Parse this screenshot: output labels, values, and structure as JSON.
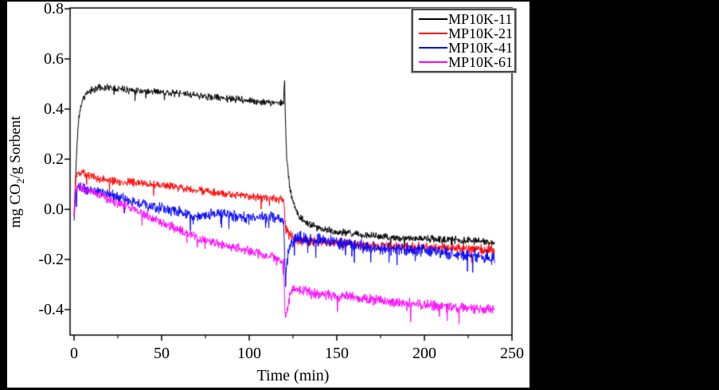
{
  "figure": {
    "background": "#000000",
    "panel_background": "#ffffff",
    "frame_color": "#000000"
  },
  "chart_data": {
    "type": "line",
    "title": "",
    "xlabel": "Time (min)",
    "ylabel": {
      "prefix": "mg CO",
      "sub": "2",
      "suffix": "/g Sorbent"
    },
    "xlim": [
      0,
      250
    ],
    "ylim": [
      -0.5,
      0.8
    ],
    "grid": false,
    "legend_position": "top-right",
    "x_major_ticks": [
      {
        "label": "0",
        "value": 0
      },
      {
        "label": "50",
        "value": 50
      },
      {
        "label": "100",
        "value": 100
      },
      {
        "label": "150",
        "value": 150
      },
      {
        "label": "200",
        "value": 200
      },
      {
        "label": "250",
        "value": 250
      }
    ],
    "x_minor_ticks": [
      25,
      75,
      125,
      175,
      225
    ],
    "y_major_ticks": [
      {
        "label": "0.8",
        "value": 0.8
      },
      {
        "label": "0.6",
        "value": 0.6
      },
      {
        "label": "0.4",
        "value": 0.4
      },
      {
        "label": "0.2",
        "value": 0.2
      },
      {
        "label": "0.0",
        "value": 0.0
      },
      {
        "label": "-0.2",
        "value": -0.2
      },
      {
        "label": "-0.4",
        "value": -0.4
      }
    ],
    "time_span_min": [
      0,
      240
    ],
    "series": [
      {
        "name": "MP10K-11",
        "color": "#000000",
        "noise": 0.011,
        "noise_boost_after_regen": 1.1,
        "spike_prob": 0.008,
        "keypoints": [
          [
            0,
            -0.03
          ],
          [
            0.5,
            0.05
          ],
          [
            1,
            0.16
          ],
          [
            2,
            0.3
          ],
          [
            3,
            0.38
          ],
          [
            5,
            0.44
          ],
          [
            8,
            0.468
          ],
          [
            12,
            0.482
          ],
          [
            18,
            0.488
          ],
          [
            25,
            0.483
          ],
          [
            35,
            0.475
          ],
          [
            50,
            0.468
          ],
          [
            65,
            0.458
          ],
          [
            80,
            0.447
          ],
          [
            95,
            0.437
          ],
          [
            105,
            0.43
          ],
          [
            112,
            0.426
          ],
          [
            119.6,
            0.421
          ],
          [
            120.2,
            0.52
          ],
          [
            120.7,
            0.34
          ],
          [
            121.4,
            0.21
          ],
          [
            122.5,
            0.12
          ],
          [
            124,
            0.055
          ],
          [
            126,
            0.008
          ],
          [
            128,
            -0.022
          ],
          [
            131,
            -0.046
          ],
          [
            135,
            -0.062
          ],
          [
            140,
            -0.076
          ],
          [
            147,
            -0.087
          ],
          [
            155,
            -0.095
          ],
          [
            165,
            -0.103
          ],
          [
            180,
            -0.111
          ],
          [
            200,
            -0.118
          ],
          [
            220,
            -0.124
          ],
          [
            240,
            -0.131
          ]
        ]
      },
      {
        "name": "MP10K-21",
        "color": "#ff0000",
        "noise": 0.013,
        "noise_boost_after_regen": 1.25,
        "spike_prob": 0.01,
        "keypoints": [
          [
            0,
            -0.02
          ],
          [
            0.5,
            0.06
          ],
          [
            1,
            0.12
          ],
          [
            2,
            0.145
          ],
          [
            6,
            0.145
          ],
          [
            12,
            0.125
          ],
          [
            20,
            0.115
          ],
          [
            30,
            0.108
          ],
          [
            45,
            0.1
          ],
          [
            60,
            0.088
          ],
          [
            75,
            0.072
          ],
          [
            90,
            0.06
          ],
          [
            105,
            0.048
          ],
          [
            119.6,
            0.04
          ],
          [
            120.3,
            -0.03
          ],
          [
            120.8,
            -0.07
          ],
          [
            122,
            -0.095
          ],
          [
            124,
            -0.112
          ],
          [
            127,
            -0.121
          ],
          [
            132,
            -0.126
          ],
          [
            140,
            -0.129
          ],
          [
            150,
            -0.134
          ],
          [
            160,
            -0.14
          ],
          [
            175,
            -0.145
          ],
          [
            190,
            -0.149
          ],
          [
            205,
            -0.152
          ],
          [
            220,
            -0.156
          ],
          [
            240,
            -0.161
          ]
        ]
      },
      {
        "name": "MP10K-41",
        "color": "#0000ff",
        "noise": 0.017,
        "noise_boost_after_regen": 1.2,
        "spike_prob": 0.014,
        "keypoints": [
          [
            0,
            -0.05
          ],
          [
            0.5,
            0.01
          ],
          [
            1,
            0.065
          ],
          [
            2,
            0.088
          ],
          [
            5,
            0.082
          ],
          [
            10,
            0.075
          ],
          [
            15,
            0.068
          ],
          [
            22,
            0.054
          ],
          [
            30,
            0.038
          ],
          [
            38,
            0.024
          ],
          [
            45,
            0.012
          ],
          [
            52,
            0.0
          ],
          [
            60,
            -0.012
          ],
          [
            68,
            -0.024
          ],
          [
            74,
            -0.028
          ],
          [
            80,
            -0.02
          ],
          [
            86,
            -0.018
          ],
          [
            92,
            -0.028
          ],
          [
            98,
            -0.032
          ],
          [
            104,
            -0.028
          ],
          [
            110,
            -0.034
          ],
          [
            115,
            -0.032
          ],
          [
            119.6,
            -0.042
          ],
          [
            120.3,
            -0.21
          ],
          [
            120.8,
            -0.27
          ],
          [
            121.5,
            -0.21
          ],
          [
            123,
            -0.15
          ],
          [
            125,
            -0.122
          ],
          [
            128,
            -0.112
          ],
          [
            133,
            -0.117
          ],
          [
            140,
            -0.122
          ],
          [
            150,
            -0.131
          ],
          [
            160,
            -0.142
          ],
          [
            172,
            -0.151
          ],
          [
            185,
            -0.159
          ],
          [
            200,
            -0.167
          ],
          [
            215,
            -0.177
          ],
          [
            228,
            -0.186
          ],
          [
            240,
            -0.196
          ]
        ]
      },
      {
        "name": "MP10K-61",
        "color": "#ff00ff",
        "noise": 0.015,
        "noise_boost_after_regen": 1.1,
        "spike_prob": 0.012,
        "keypoints": [
          [
            0,
            -0.04
          ],
          [
            0.4,
            0.02
          ],
          [
            1,
            0.075
          ],
          [
            2,
            0.09
          ],
          [
            4,
            0.086
          ],
          [
            8,
            0.075
          ],
          [
            14,
            0.06
          ],
          [
            20,
            0.042
          ],
          [
            27,
            0.02
          ],
          [
            34,
            0.0
          ],
          [
            42,
            -0.026
          ],
          [
            50,
            -0.05
          ],
          [
            58,
            -0.076
          ],
          [
            66,
            -0.1
          ],
          [
            74,
            -0.12
          ],
          [
            82,
            -0.135
          ],
          [
            90,
            -0.15
          ],
          [
            98,
            -0.163
          ],
          [
            106,
            -0.177
          ],
          [
            113,
            -0.19
          ],
          [
            119.6,
            -0.205
          ],
          [
            120.3,
            -0.39
          ],
          [
            120.8,
            -0.44
          ],
          [
            121.6,
            -0.4
          ],
          [
            123,
            -0.345
          ],
          [
            125,
            -0.315
          ],
          [
            130,
            -0.325
          ],
          [
            140,
            -0.34
          ],
          [
            160,
            -0.352
          ],
          [
            180,
            -0.368
          ],
          [
            200,
            -0.382
          ],
          [
            220,
            -0.392
          ],
          [
            240,
            -0.403
          ]
        ]
      }
    ]
  }
}
